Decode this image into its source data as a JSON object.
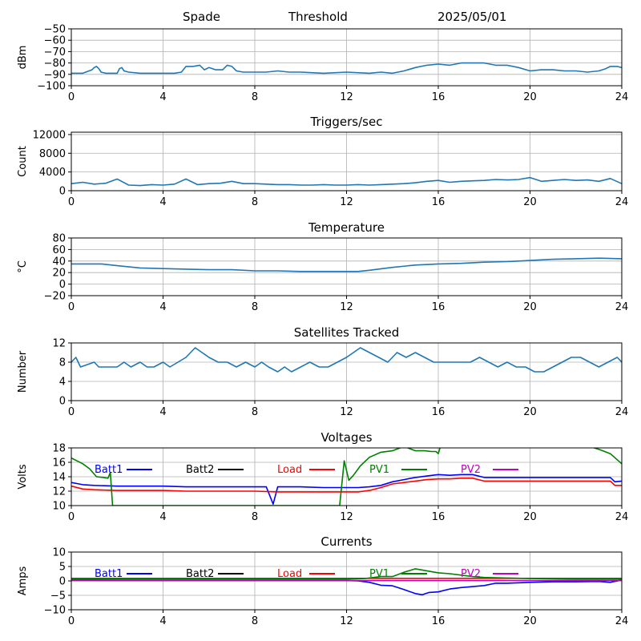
{
  "header": {
    "station": "Spade",
    "mode": "Threshold",
    "date": "2025/05/01"
  },
  "chart_data": [
    {
      "type": "line",
      "title": "",
      "ylabel": "dBm",
      "xlabel": "",
      "xlim": [
        0,
        24
      ],
      "ylim": [
        -100,
        -50
      ],
      "xticks": [
        0,
        4,
        8,
        12,
        16,
        20,
        24
      ],
      "yticks": [
        -100,
        -90,
        -80,
        -70,
        -60,
        -50
      ],
      "grid": true,
      "series": [
        {
          "name": "",
          "color": "#1f77b4",
          "x": [
            0,
            0.5,
            0.9,
            1.0,
            1.1,
            1.2,
            1.3,
            1.5,
            2.0,
            2.1,
            2.2,
            2.3,
            2.5,
            3.0,
            3.5,
            4.0,
            4.5,
            4.8,
            5.0,
            5.3,
            5.6,
            5.8,
            6.0,
            6.3,
            6.6,
            6.8,
            7.0,
            7.2,
            7.5,
            8.0,
            8.5,
            9.0,
            9.5,
            10.0,
            11.0,
            12.0,
            13.0,
            13.5,
            14.0,
            14.5,
            15.0,
            15.5,
            16.0,
            16.5,
            17.0,
            17.5,
            18.0,
            18.5,
            19.0,
            19.5,
            20.0,
            20.5,
            21.0,
            21.5,
            22.0,
            22.5,
            23.0,
            23.3,
            23.5,
            23.8,
            24.0
          ],
          "y": [
            -89,
            -89,
            -86,
            -84,
            -83,
            -85,
            -88,
            -89,
            -89,
            -85,
            -84,
            -87,
            -88,
            -89,
            -89,
            -89,
            -89,
            -88,
            -83,
            -83,
            -82,
            -86,
            -84,
            -86,
            -86,
            -82,
            -83,
            -87,
            -88,
            -88,
            -88,
            -87,
            -88,
            -88,
            -89,
            -88,
            -89,
            -88,
            -89,
            -87,
            -84,
            -82,
            -81,
            -82,
            -80,
            -80,
            -80,
            -82,
            -82,
            -84,
            -87,
            -86,
            -86,
            -87,
            -87,
            -88,
            -87,
            -85,
            -83,
            -83,
            -84
          ]
        }
      ]
    },
    {
      "type": "line",
      "title": "Triggers/sec",
      "ylabel": "Count",
      "xlabel": "",
      "xlim": [
        0,
        24
      ],
      "ylim": [
        0,
        12500
      ],
      "xticks": [
        0,
        4,
        8,
        12,
        16,
        20,
        24
      ],
      "yticks": [
        0,
        4000,
        8000,
        12000
      ],
      "grid": true,
      "series": [
        {
          "name": "",
          "color": "#1f77b4",
          "x": [
            0,
            0.5,
            1.0,
            1.5,
            2.0,
            2.5,
            3.0,
            3.5,
            4.0,
            4.5,
            5.0,
            5.5,
            6.0,
            6.5,
            7.0,
            7.5,
            8.0,
            8.5,
            9.0,
            9.5,
            10.0,
            10.5,
            11.0,
            11.5,
            12.0,
            12.5,
            13.0,
            13.5,
            14.0,
            14.5,
            15.0,
            15.5,
            16.0,
            16.5,
            17.0,
            17.5,
            18.0,
            18.5,
            19.0,
            19.5,
            20.0,
            20.5,
            21.0,
            21.5,
            22.0,
            22.5,
            23.0,
            23.5,
            24.0
          ],
          "y": [
            1500,
            1800,
            1400,
            1600,
            2500,
            1200,
            1100,
            1300,
            1200,
            1400,
            2500,
            1300,
            1500,
            1600,
            2000,
            1500,
            1500,
            1400,
            1300,
            1300,
            1200,
            1200,
            1300,
            1200,
            1200,
            1300,
            1200,
            1300,
            1400,
            1500,
            1700,
            2000,
            2200,
            1800,
            2000,
            2100,
            2200,
            2400,
            2300,
            2400,
            2800,
            2000,
            2200,
            2400,
            2200,
            2300,
            2000,
            2600,
            1500
          ]
        }
      ]
    },
    {
      "type": "line",
      "title": "Temperature",
      "ylabel": "°C",
      "xlabel": "",
      "xlim": [
        0,
        24
      ],
      "ylim": [
        -20,
        80
      ],
      "xticks": [
        0,
        4,
        8,
        12,
        16,
        20,
        24
      ],
      "yticks": [
        -20,
        0,
        20,
        40,
        60,
        80
      ],
      "grid": true,
      "series": [
        {
          "name": "",
          "color": "#1f77b4",
          "x": [
            0,
            1.3,
            2,
            3,
            4,
            5,
            6,
            7,
            8,
            9,
            10,
            11,
            12.5,
            13,
            14,
            15,
            16,
            17,
            18,
            19,
            20,
            21,
            22,
            23,
            24
          ],
          "y": [
            35,
            35,
            32,
            28,
            27,
            26,
            25,
            25,
            23,
            23,
            22,
            22,
            22,
            24,
            29,
            33,
            35,
            36,
            38,
            39,
            41,
            43,
            44,
            45,
            44
          ]
        }
      ]
    },
    {
      "type": "line",
      "title": "Satellites Tracked",
      "ylabel": "Number",
      "xlabel": "",
      "xlim": [
        0,
        24
      ],
      "ylim": [
        0,
        12
      ],
      "xticks": [
        0,
        4,
        8,
        12,
        16,
        20,
        24
      ],
      "yticks": [
        0,
        4,
        8,
        12
      ],
      "grid": true,
      "series": [
        {
          "name": "",
          "color": "#1f77b4",
          "x": [
            0,
            0.2,
            0.4,
            1.0,
            1.2,
            2.0,
            2.3,
            2.6,
            3.0,
            3.3,
            3.6,
            4.0,
            4.3,
            5.0,
            5.4,
            5.7,
            6.0,
            6.4,
            6.8,
            7.2,
            7.6,
            8.0,
            8.3,
            8.6,
            9.0,
            9.3,
            9.6,
            10.0,
            10.4,
            10.8,
            11.2,
            11.6,
            12.0,
            12.3,
            12.6,
            13.0,
            13.4,
            13.8,
            14.2,
            14.6,
            15.0,
            15.4,
            15.8,
            16.2,
            16.6,
            17.0,
            17.4,
            17.8,
            18.2,
            18.6,
            19.0,
            19.4,
            19.8,
            20.2,
            20.6,
            21.0,
            21.4,
            21.8,
            22.2,
            22.6,
            23.0,
            23.4,
            23.8,
            24.0
          ],
          "y": [
            8,
            9,
            7,
            8,
            7,
            7,
            8,
            7,
            8,
            7,
            7,
            8,
            7,
            9,
            11,
            10,
            9,
            8,
            8,
            7,
            8,
            7,
            8,
            7,
            6,
            7,
            6,
            7,
            8,
            7,
            7,
            8,
            9,
            10,
            11,
            10,
            9,
            8,
            10,
            9,
            10,
            9,
            8,
            8,
            8,
            8,
            8,
            9,
            8,
            7,
            8,
            7,
            7,
            6,
            6,
            7,
            8,
            9,
            9,
            8,
            7,
            8,
            9,
            8
          ]
        }
      ]
    },
    {
      "type": "line",
      "title": "Voltages",
      "ylabel": "Volts",
      "xlabel": "",
      "xlim": [
        0,
        24
      ],
      "ylim": [
        10,
        18
      ],
      "xticks": [
        0,
        4,
        8,
        12,
        16,
        20,
        24
      ],
      "yticks": [
        10,
        12,
        14,
        16,
        18
      ],
      "grid": true,
      "legend": "top",
      "series": [
        {
          "name": "Batt1",
          "color": "#0000ff",
          "x": [
            0,
            0.5,
            1,
            2,
            3,
            4,
            5,
            6,
            7,
            8,
            8.5,
            8.6,
            8.8,
            9.0,
            10,
            11,
            12,
            12.5,
            13,
            13.5,
            14,
            14.5,
            15,
            15.5,
            16,
            16.5,
            17,
            17.5,
            18,
            19,
            20,
            21,
            22,
            23,
            23.5,
            23.7,
            24
          ],
          "y": [
            13.2,
            12.9,
            12.8,
            12.7,
            12.7,
            12.7,
            12.6,
            12.6,
            12.6,
            12.6,
            12.6,
            11.8,
            10.2,
            12.6,
            12.6,
            12.5,
            12.5,
            12.5,
            12.6,
            12.8,
            13.3,
            13.6,
            13.9,
            14.1,
            14.3,
            14.2,
            14.3,
            14.3,
            13.9,
            13.9,
            13.9,
            13.9,
            13.9,
            13.9,
            13.9,
            13.3,
            13.4
          ]
        },
        {
          "name": "Batt2",
          "color": "#000000",
          "x": [],
          "y": []
        },
        {
          "name": "Load",
          "color": "#ff0000",
          "x": [
            0,
            0.5,
            1,
            2,
            3,
            4,
            5,
            6,
            7,
            8,
            9,
            10,
            11,
            12,
            12.5,
            13,
            13.5,
            14,
            14.5,
            15,
            15.5,
            16,
            16.5,
            17,
            17.5,
            18,
            19,
            20,
            21,
            22,
            23,
            23.5,
            23.7,
            24
          ],
          "y": [
            12.7,
            12.3,
            12.2,
            12.1,
            12.1,
            12.1,
            12.0,
            12.0,
            12.0,
            12.0,
            11.9,
            11.9,
            11.9,
            11.9,
            11.9,
            12.1,
            12.5,
            13.0,
            13.2,
            13.4,
            13.6,
            13.7,
            13.7,
            13.8,
            13.8,
            13.4,
            13.4,
            13.4,
            13.4,
            13.4,
            13.4,
            13.4,
            12.8,
            12.8
          ]
        },
        {
          "name": "PV1",
          "color": "#008000",
          "x": [
            0,
            0.5,
            0.8,
            1.1,
            1.4,
            1.6,
            1.7,
            1.8,
            11.7,
            11.9,
            12.1,
            12.3,
            12.6,
            13.0,
            13.5,
            14.0,
            14.5,
            15.0,
            15.4,
            15.7,
            15.9,
            16.0,
            16.1,
            22.5,
            23.0,
            23.5,
            24
          ],
          "y": [
            16.6,
            15.8,
            15.1,
            14.0,
            13.9,
            13.8,
            14.6,
            10.0,
            10.0,
            16.2,
            13.5,
            14.2,
            15.5,
            16.7,
            17.4,
            17.6,
            18.2,
            17.6,
            17.6,
            17.5,
            17.5,
            17.2,
            18.3,
            18.3,
            17.8,
            17.2,
            15.8
          ]
        },
        {
          "name": "PV2",
          "color": "#bf00bf",
          "x": [],
          "y": []
        }
      ]
    },
    {
      "type": "line",
      "title": "Currents",
      "ylabel": "Amps",
      "xlabel": "",
      "xlim": [
        0,
        24
      ],
      "ylim": [
        -10,
        10
      ],
      "xticks": [
        0,
        4,
        8,
        12,
        16,
        20,
        24
      ],
      "yticks": [
        -10,
        -5,
        0,
        5,
        10
      ],
      "grid": true,
      "legend": "top",
      "series": [
        {
          "name": "Batt1",
          "color": "#0000ff",
          "x": [
            0,
            1,
            2,
            4,
            6,
            8,
            10,
            12,
            12.5,
            13,
            13.5,
            14.0,
            14.5,
            15.0,
            15.3,
            15.6,
            16.0,
            16.5,
            17,
            18,
            18.5,
            19,
            20,
            21,
            22,
            23,
            23.5,
            24
          ],
          "y": [
            0.3,
            0.2,
            0.1,
            0.1,
            0.1,
            0.1,
            0.1,
            0.1,
            0.0,
            -0.5,
            -1.5,
            -1.7,
            -3.0,
            -4.4,
            -4.8,
            -4.0,
            -3.8,
            -2.8,
            -2.3,
            -1.6,
            -0.8,
            -0.8,
            -0.5,
            -0.3,
            -0.3,
            -0.2,
            -0.5,
            0.3
          ]
        },
        {
          "name": "Batt2",
          "color": "#000000",
          "x": [],
          "y": []
        },
        {
          "name": "Load",
          "color": "#ff0000",
          "x": [
            0,
            4,
            8,
            12,
            16,
            20,
            24
          ],
          "y": [
            0.9,
            0.9,
            0.9,
            0.9,
            0.9,
            0.9,
            0.9
          ]
        },
        {
          "name": "PV1",
          "color": "#008000",
          "x": [
            0,
            4,
            8,
            12,
            12.8,
            13.5,
            14.0,
            14.5,
            15.0,
            15.5,
            16.0,
            16.5,
            17.0,
            17.5,
            18.0,
            19.0,
            20.0,
            21.0,
            22.0,
            23.0,
            23.5,
            24
          ],
          "y": [
            0.6,
            0.6,
            0.6,
            0.6,
            0.8,
            1.5,
            1.5,
            3.0,
            4.2,
            3.5,
            2.8,
            2.5,
            2.0,
            1.5,
            1.2,
            1.0,
            0.8,
            0.7,
            0.6,
            0.6,
            0.6,
            0.6
          ]
        },
        {
          "name": "PV2",
          "color": "#bf00bf",
          "x": [
            0,
            4,
            8,
            12,
            16,
            20,
            24
          ],
          "y": [
            0.1,
            0.1,
            0.1,
            0.1,
            0.1,
            0.1,
            0.1
          ]
        }
      ]
    }
  ]
}
